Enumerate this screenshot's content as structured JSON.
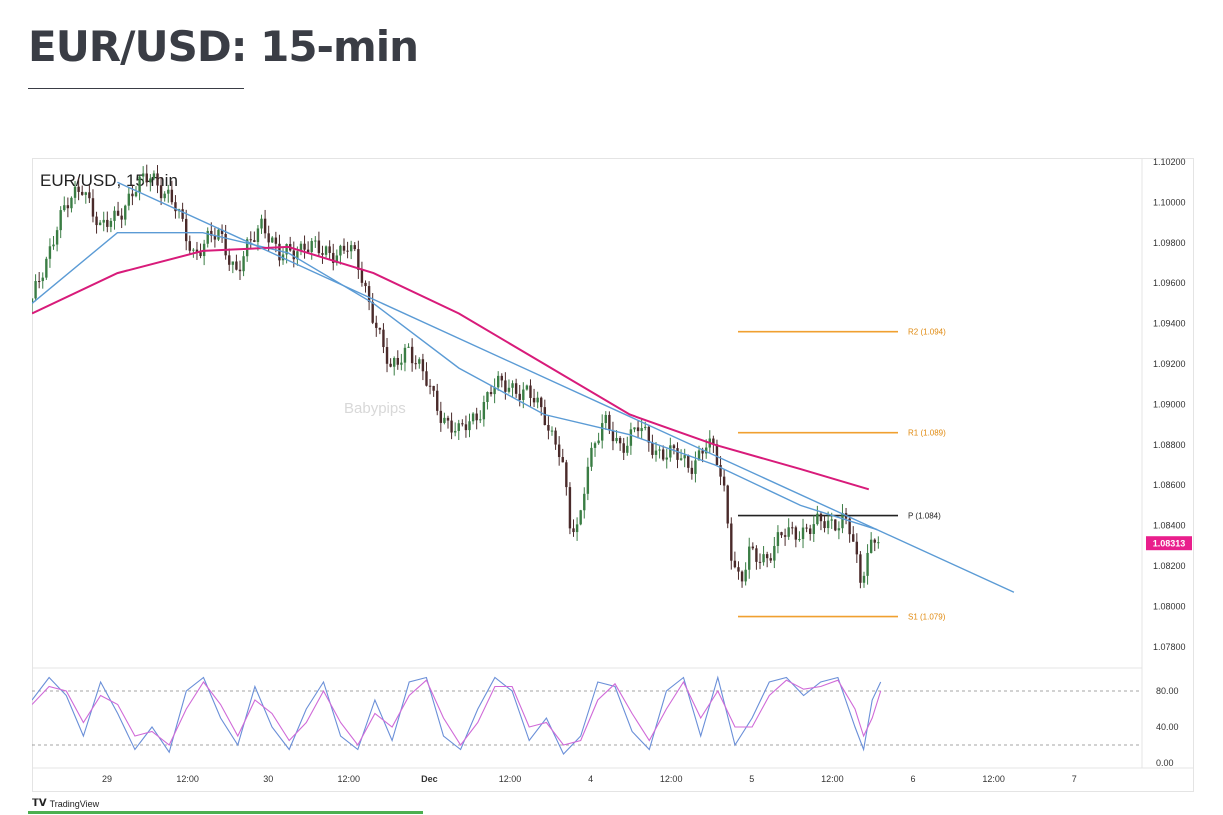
{
  "page": {
    "title": "EUR/USD: 15-min",
    "footer_brand": "TradingView"
  },
  "colors": {
    "candle_up": "#3a7d44",
    "candle_down": "#4a2a2a",
    "sma_fast": "#5b9bd5",
    "sma_slow": "#d81b7a",
    "trendline": "#5b9bd5",
    "pivot_orange": "#f0a030",
    "pivot_black": "#222222",
    "price_tag": "#e91e8c",
    "stoch_k": "#6a8fd8",
    "stoch_d": "#d06ad8"
  },
  "chart_data": {
    "type": "candlestick",
    "title": "EUR/USD, 15-min",
    "watermark": "Babypips",
    "x_ticks": [
      "29",
      "12:00",
      "30",
      "12:00",
      "Dec",
      "12:00",
      "4",
      "12:00",
      "5",
      "12:00",
      "6",
      "12:00",
      "7"
    ],
    "price_axis": {
      "ticks": [
        "1.10200",
        "1.10000",
        "1.09800",
        "1.09600",
        "1.09400",
        "1.09200",
        "1.09000",
        "1.08800",
        "1.08600",
        "1.08400",
        "1.08200",
        "1.08000",
        "1.07800"
      ],
      "ylim": [
        1.0772,
        1.1022
      ]
    },
    "last_price": "1.08313",
    "price_path": [
      [
        0,
        1.095
      ],
      [
        3,
        1.099
      ],
      [
        6,
        1.101
      ],
      [
        8,
        1.0985
      ],
      [
        12,
        1.1005
      ],
      [
        14,
        1.1015
      ],
      [
        17,
        1.0995
      ],
      [
        19,
        1.0975
      ],
      [
        22,
        1.0985
      ],
      [
        24,
        1.0965
      ],
      [
        27,
        1.0992
      ],
      [
        29,
        1.0972
      ],
      [
        32,
        1.098
      ],
      [
        34,
        1.0974
      ],
      [
        37,
        1.0978
      ],
      [
        38,
        1.097
      ],
      [
        40,
        1.0945
      ],
      [
        42,
        1.0915
      ],
      [
        44,
        1.093
      ],
      [
        46,
        1.0912
      ],
      [
        48,
        1.0895
      ],
      [
        50,
        1.0885
      ],
      [
        52,
        1.0895
      ],
      [
        54,
        1.0908
      ],
      [
        56,
        1.091
      ],
      [
        58,
        1.0905
      ],
      [
        60,
        1.0895
      ],
      [
        62,
        1.0875
      ],
      [
        63,
        1.0838
      ],
      [
        64,
        1.0838
      ],
      [
        65,
        1.0872
      ],
      [
        67,
        1.089
      ],
      [
        69,
        1.088
      ],
      [
        71,
        1.0888
      ],
      [
        73,
        1.0878
      ],
      [
        75,
        1.0875
      ],
      [
        77,
        1.087
      ],
      [
        79,
        1.088
      ],
      [
        80,
        1.0875
      ],
      [
        81,
        1.086
      ],
      [
        82,
        1.0825
      ],
      [
        83,
        1.081
      ],
      [
        84,
        1.0825
      ],
      [
        86,
        1.0825
      ],
      [
        88,
        1.0835
      ],
      [
        90,
        1.0838
      ],
      [
        92,
        1.084
      ],
      [
        94,
        1.0842
      ],
      [
        95,
        1.0845
      ],
      [
        96,
        1.0835
      ],
      [
        97,
        1.081
      ],
      [
        98,
        1.083
      ],
      [
        99,
        1.0838
      ],
      [
        99.4,
        1.0831
      ]
    ],
    "moving_averages": [
      {
        "values": [
          [
            0,
            1.095
          ],
          [
            10,
            1.0985
          ],
          [
            20,
            1.0985
          ],
          [
            30,
            1.0975
          ],
          [
            40,
            1.095
          ],
          [
            50,
            1.0918
          ],
          [
            60,
            1.0895
          ],
          [
            70,
            1.0885
          ],
          [
            80,
            1.087
          ],
          [
            90,
            1.085
          ],
          [
            99,
            1.0838
          ]
        ]
      },
      {
        "values": [
          [
            0,
            1.0945
          ],
          [
            10,
            1.0965
          ],
          [
            20,
            1.0976
          ],
          [
            30,
            1.0978
          ],
          [
            40,
            1.0965
          ],
          [
            50,
            1.0945
          ],
          [
            60,
            1.092
          ],
          [
            70,
            1.0895
          ],
          [
            80,
            1.088
          ],
          [
            90,
            1.0868
          ],
          [
            98,
            1.0858
          ]
        ]
      }
    ],
    "trendline": [
      [
        10,
        1.101
      ],
      [
        115,
        1.0807
      ]
    ],
    "pivot_levels": [
      {
        "label": "R2 (1.094)",
        "value": 1.0936,
        "color": "orange"
      },
      {
        "label": "R1 (1.089)",
        "value": 1.0886,
        "color": "orange"
      },
      {
        "label": "P (1.084)",
        "value": 1.0845,
        "color": "black"
      },
      {
        "label": "S1 (1.079)",
        "value": 1.0795,
        "color": "orange"
      }
    ],
    "stochastic": {
      "ticks": [
        "80.00",
        "40.00",
        "0.00"
      ],
      "levels": [
        80,
        20
      ],
      "ylim": [
        0,
        100
      ],
      "k": [
        [
          0,
          70
        ],
        [
          2,
          95
        ],
        [
          4,
          75
        ],
        [
          6,
          30
        ],
        [
          8,
          90
        ],
        [
          10,
          55
        ],
        [
          12,
          15
        ],
        [
          14,
          40
        ],
        [
          16,
          12
        ],
        [
          18,
          80
        ],
        [
          20,
          95
        ],
        [
          22,
          50
        ],
        [
          24,
          20
        ],
        [
          26,
          85
        ],
        [
          28,
          40
        ],
        [
          30,
          15
        ],
        [
          32,
          60
        ],
        [
          34,
          90
        ],
        [
          36,
          30
        ],
        [
          38,
          15
        ],
        [
          40,
          70
        ],
        [
          42,
          25
        ],
        [
          44,
          90
        ],
        [
          46,
          95
        ],
        [
          48,
          30
        ],
        [
          50,
          15
        ],
        [
          52,
          60
        ],
        [
          54,
          95
        ],
        [
          56,
          80
        ],
        [
          58,
          25
        ],
        [
          60,
          50
        ],
        [
          62,
          10
        ],
        [
          64,
          30
        ],
        [
          66,
          90
        ],
        [
          68,
          85
        ],
        [
          70,
          35
        ],
        [
          72,
          15
        ],
        [
          74,
          80
        ],
        [
          76,
          95
        ],
        [
          78,
          30
        ],
        [
          80,
          95
        ],
        [
          82,
          20
        ],
        [
          84,
          50
        ],
        [
          86,
          90
        ],
        [
          88,
          95
        ],
        [
          90,
          75
        ],
        [
          92,
          90
        ],
        [
          94,
          95
        ],
        [
          96,
          40
        ],
        [
          97,
          15
        ],
        [
          98,
          70
        ],
        [
          99,
          90
        ]
      ],
      "d": [
        [
          0,
          65
        ],
        [
          2,
          85
        ],
        [
          4,
          80
        ],
        [
          6,
          45
        ],
        [
          8,
          75
        ],
        [
          10,
          65
        ],
        [
          12,
          30
        ],
        [
          14,
          35
        ],
        [
          16,
          20
        ],
        [
          18,
          60
        ],
        [
          20,
          90
        ],
        [
          22,
          65
        ],
        [
          24,
          30
        ],
        [
          26,
          70
        ],
        [
          28,
          55
        ],
        [
          30,
          25
        ],
        [
          32,
          45
        ],
        [
          34,
          80
        ],
        [
          36,
          45
        ],
        [
          38,
          20
        ],
        [
          40,
          55
        ],
        [
          42,
          40
        ],
        [
          44,
          75
        ],
        [
          46,
          92
        ],
        [
          48,
          50
        ],
        [
          50,
          20
        ],
        [
          52,
          45
        ],
        [
          54,
          85
        ],
        [
          56,
          85
        ],
        [
          58,
          40
        ],
        [
          60,
          45
        ],
        [
          62,
          20
        ],
        [
          64,
          25
        ],
        [
          66,
          70
        ],
        [
          68,
          88
        ],
        [
          70,
          55
        ],
        [
          72,
          25
        ],
        [
          74,
          60
        ],
        [
          76,
          90
        ],
        [
          78,
          50
        ],
        [
          80,
          80
        ],
        [
          82,
          40
        ],
        [
          84,
          40
        ],
        [
          86,
          75
        ],
        [
          88,
          92
        ],
        [
          90,
          82
        ],
        [
          92,
          85
        ],
        [
          94,
          92
        ],
        [
          96,
          60
        ],
        [
          97,
          30
        ],
        [
          98,
          50
        ],
        [
          99,
          80
        ]
      ]
    }
  }
}
